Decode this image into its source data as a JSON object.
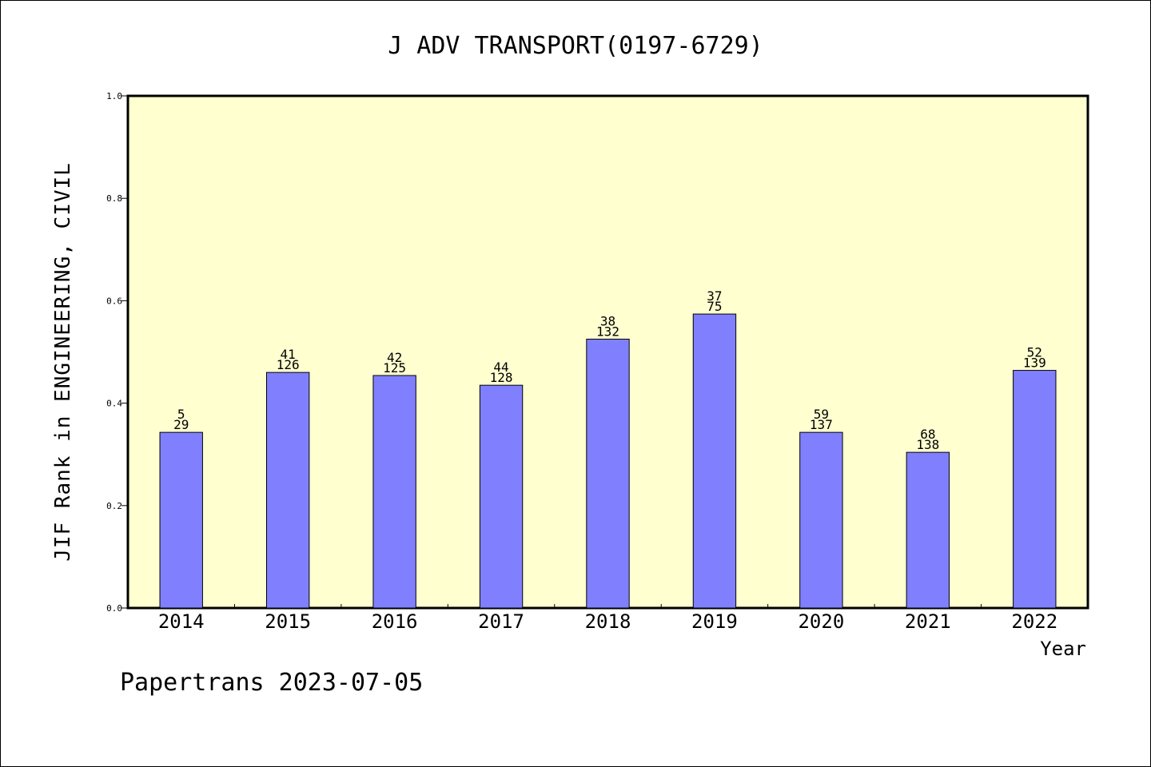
{
  "colors": {
    "plot_background": "#ffffd0",
    "bar_fill": "#8080ff",
    "bar_stroke": "#000000",
    "axis": "#000000"
  },
  "footer": {
    "text": "Papertrans 2023-07-05"
  },
  "chart_data": {
    "type": "bar",
    "title": "J ADV TRANSPORT(0197-6729)",
    "xlabel": "Year",
    "ylabel": "JIF Rank in ENGINEERING, CIVIL",
    "ylim": [
      0,
      1.0
    ],
    "yticks": [
      0.0,
      0.2,
      0.4,
      0.6,
      0.8,
      1.0
    ],
    "ytick_labels": [
      "0.0",
      "0.2",
      "0.4",
      "0.6",
      "0.8",
      "1.0"
    ],
    "grid": false,
    "categories": [
      "2014",
      "2015",
      "2016",
      "2017",
      "2018",
      "2019",
      "2020",
      "2021",
      "2022"
    ],
    "values": [
      0.343,
      0.46,
      0.454,
      0.435,
      0.525,
      0.574,
      0.343,
      0.304,
      0.464
    ],
    "data_labels": [
      [
        "5",
        "29"
      ],
      [
        "41",
        "126"
      ],
      [
        "42",
        "125"
      ],
      [
        "44",
        "128"
      ],
      [
        "38",
        "132"
      ],
      [
        "37",
        "75"
      ],
      [
        "59",
        "137"
      ],
      [
        "68",
        "138"
      ],
      [
        "52",
        "139"
      ]
    ]
  }
}
